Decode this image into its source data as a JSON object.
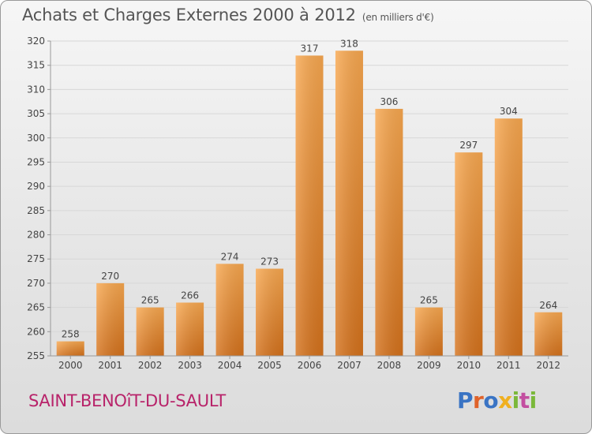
{
  "header": {
    "title": "Achats et Charges Externes 2000 à 2012",
    "unit": "(en milliers d'€)"
  },
  "footer": {
    "commune": "SAINT-BENOîT-DU-SAULT",
    "logo": "Proxiti"
  },
  "colors": {
    "bar_light": "#f7a64f",
    "bar_dark": "#d8741d",
    "grid": "#d7d7d7",
    "axis": "#999999",
    "commune_text": "#b8236a"
  },
  "chart_data": {
    "type": "bar",
    "categories": [
      "2000",
      "2001",
      "2002",
      "2003",
      "2004",
      "2005",
      "2006",
      "2007",
      "2008",
      "2009",
      "2010",
      "2011",
      "2012"
    ],
    "values": [
      258,
      270,
      265,
      266,
      274,
      273,
      317,
      318,
      306,
      265,
      297,
      304,
      264
    ],
    "title": "Achats et Charges Externes 2000 à 2012",
    "xlabel": "",
    "ylabel": "",
    "ylim": [
      255,
      320
    ],
    "yticks": [
      255,
      260,
      265,
      270,
      275,
      280,
      285,
      290,
      295,
      300,
      305,
      310,
      315,
      320
    ],
    "grid": true,
    "data_labels": true
  }
}
